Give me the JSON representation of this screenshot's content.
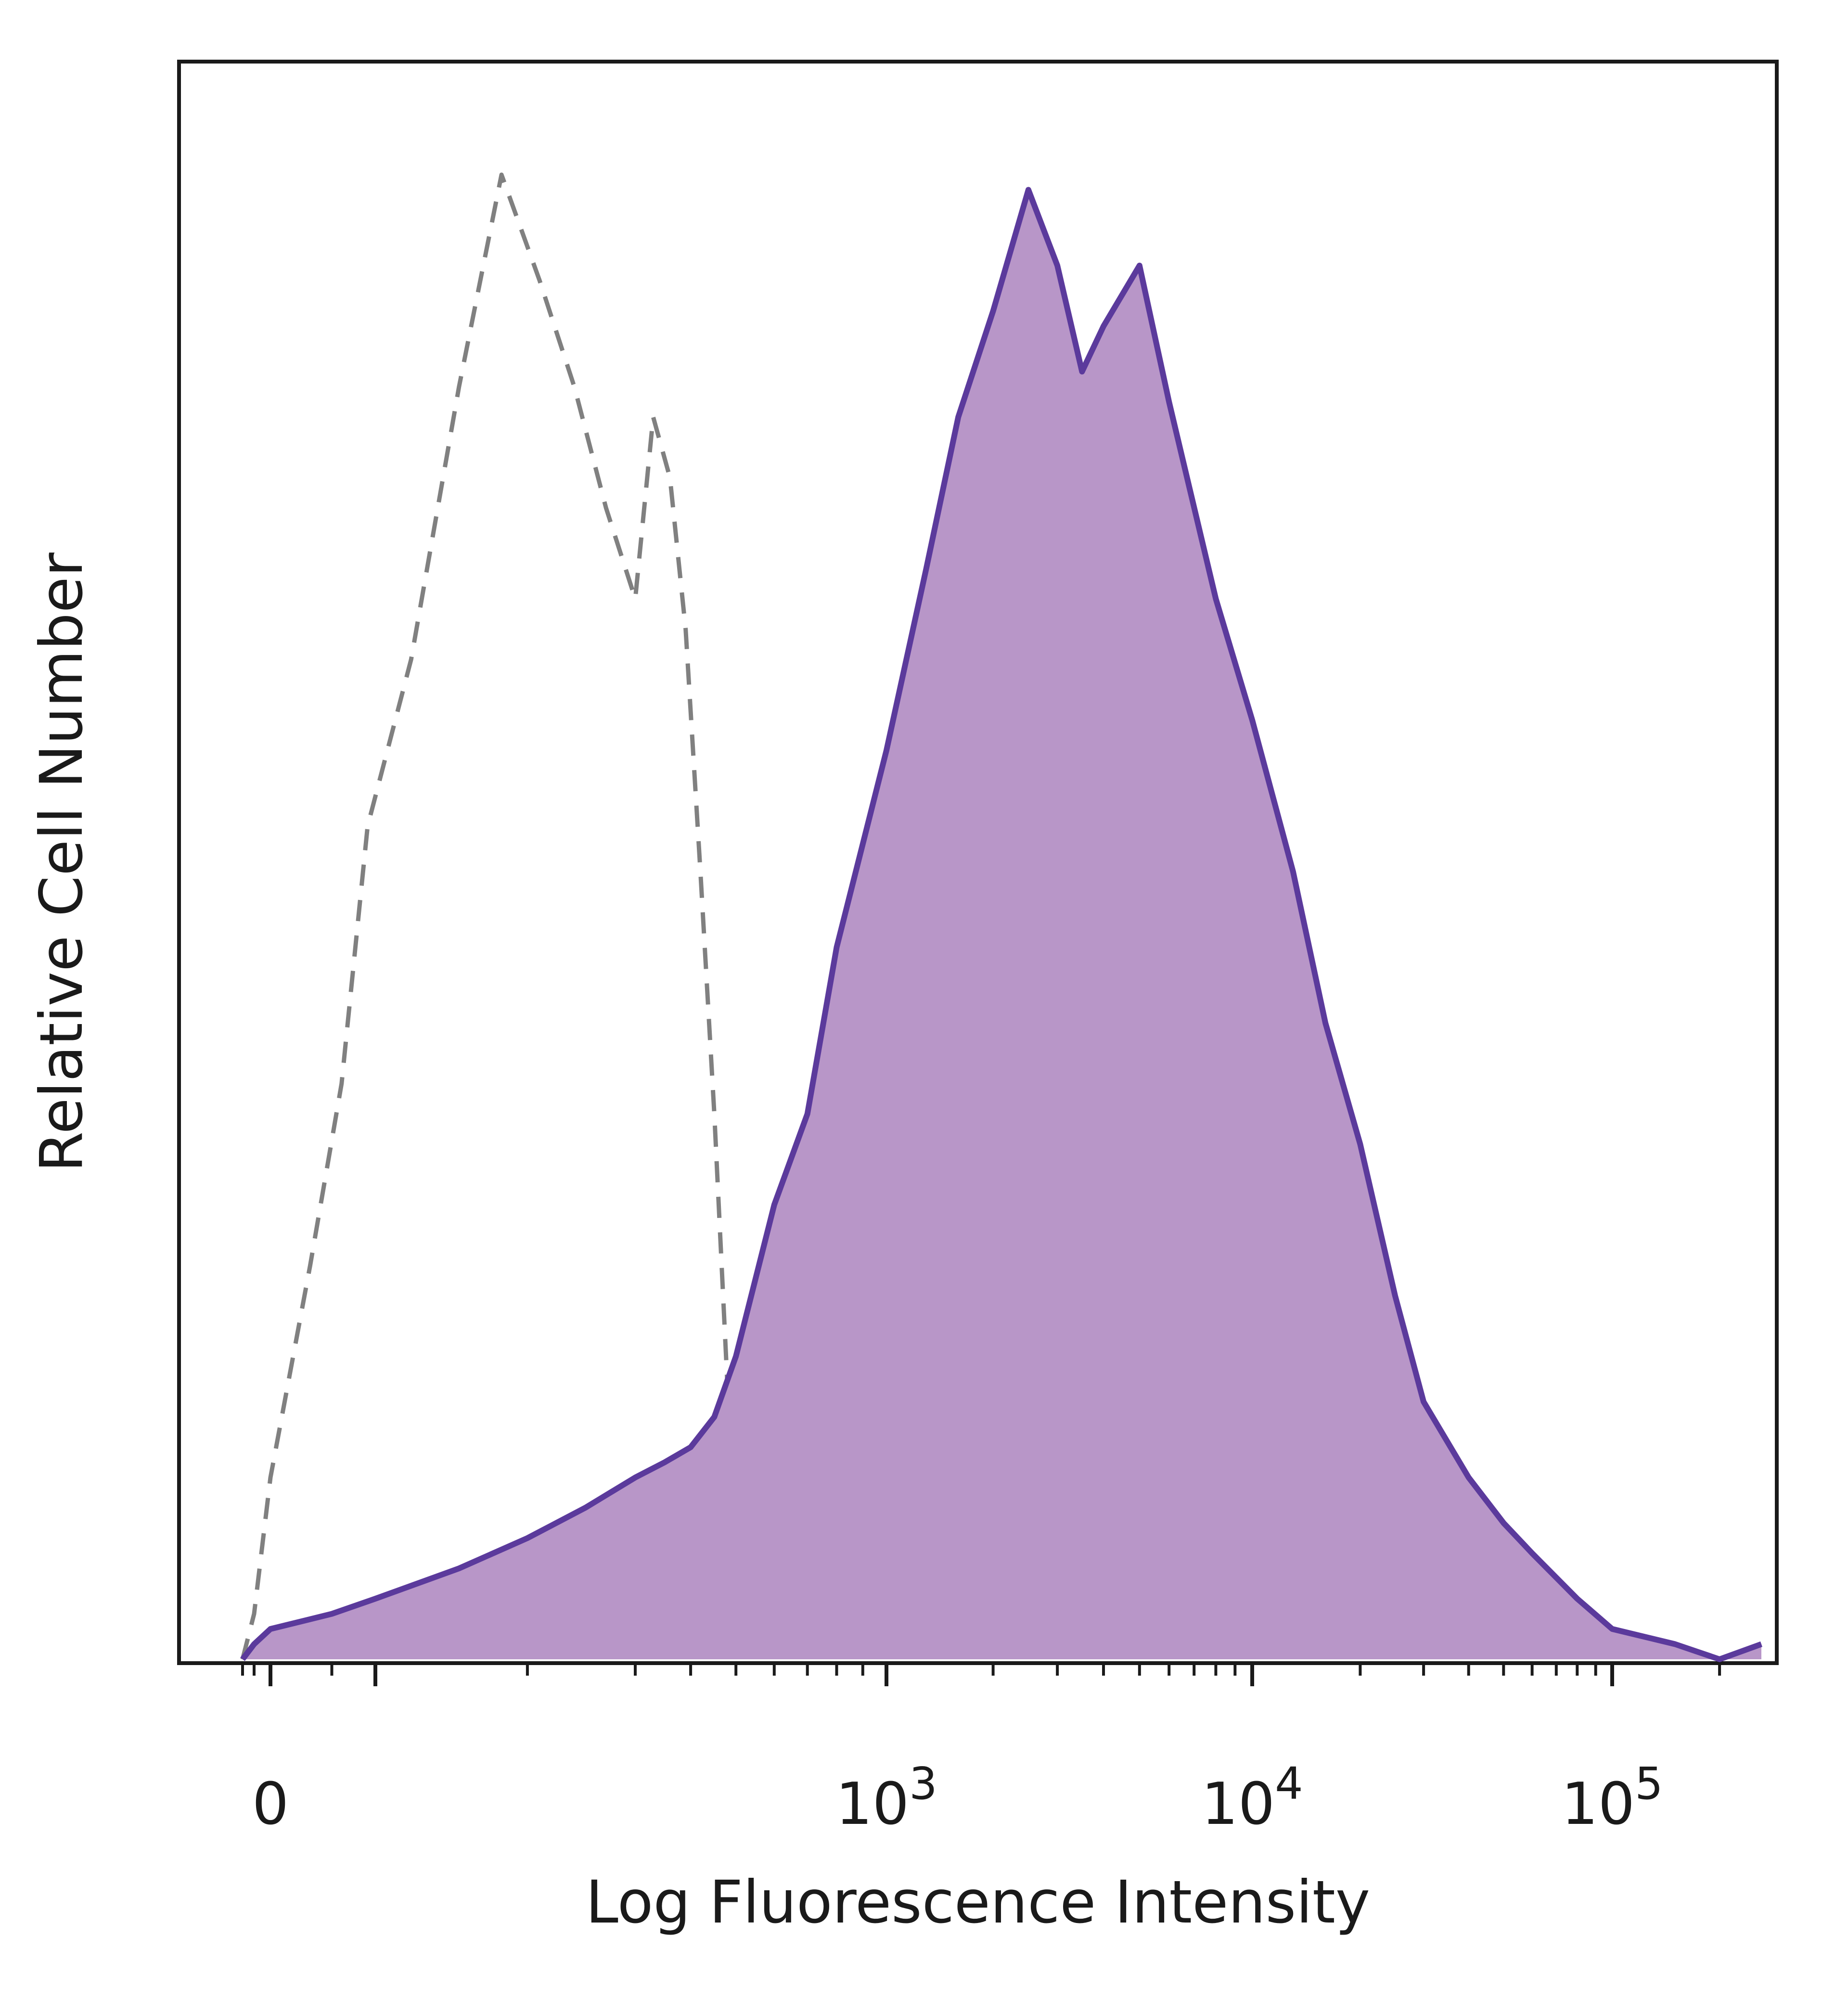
{
  "chart_data": {
    "type": "area",
    "xlabel": "Log Fluorescence Intensity",
    "ylabel": "Relative Cell Number",
    "x_scale": "biexponential",
    "x_tick_labels": [
      {
        "value": 0,
        "base": "0",
        "exponent": ""
      },
      {
        "value": 1000,
        "base": "10",
        "exponent": "3"
      },
      {
        "value": 10000,
        "base": "10",
        "exponent": "4"
      },
      {
        "value": 100000,
        "base": "10",
        "exponent": "5"
      }
    ],
    "grid": false,
    "legend": "none",
    "series": [
      {
        "style": "dashed-outline",
        "color": "#808080",
        "x": [
          -100,
          -50,
          0,
          30,
          60,
          90,
          120,
          150,
          180,
          210,
          240,
          270,
          300,
          330,
          360,
          390,
          420,
          450,
          480,
          510
        ],
        "y": [
          0.0,
          0.03,
          0.12,
          0.26,
          0.38,
          0.55,
          0.66,
          0.84,
          0.98,
          0.91,
          0.84,
          0.76,
          0.7,
          0.82,
          0.78,
          0.68,
          0.52,
          0.36,
          0.18,
          0.02
        ]
      },
      {
        "style": "filled",
        "color": "#5b3a9c",
        "fill": "#b896c8",
        "x": [
          -100,
          -50,
          0,
          50,
          100,
          150,
          200,
          250,
          300,
          350,
          400,
          450,
          500,
          600,
          700,
          800,
          1000,
          1300,
          1600,
          2000,
          2500,
          3000,
          3500,
          4000,
          5000,
          6000,
          8000,
          10000,
          13000,
          16000,
          20000,
          25000,
          30000,
          40000,
          50000,
          60000,
          80000,
          100000,
          150000,
          200000,
          262000
        ],
        "y": [
          0.0,
          0.01,
          0.02,
          0.03,
          0.04,
          0.06,
          0.08,
          0.1,
          0.12,
          0.13,
          0.14,
          0.16,
          0.2,
          0.3,
          0.36,
          0.47,
          0.6,
          0.72,
          0.82,
          0.89,
          0.97,
          0.92,
          0.85,
          0.88,
          0.92,
          0.83,
          0.7,
          0.62,
          0.52,
          0.42,
          0.34,
          0.24,
          0.17,
          0.12,
          0.09,
          0.07,
          0.04,
          0.02,
          0.01,
          0.0,
          0.01
        ]
      }
    ]
  }
}
